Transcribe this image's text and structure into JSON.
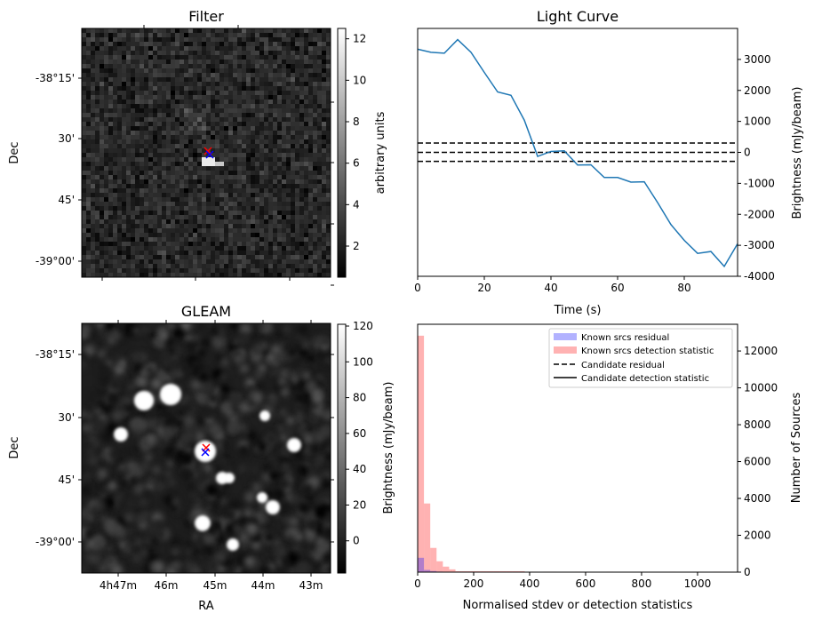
{
  "chart_data": [
    {
      "type": "heatmap",
      "title": "Filter",
      "ylabel": "Dec",
      "yticks": [
        "-38°15'",
        "30'",
        "45'",
        "-39°00'"
      ],
      "colorbar": {
        "label": "arbitrary units",
        "ticks": [
          "2",
          "4",
          "6",
          "8",
          "10",
          "12"
        ],
        "tick_values": [
          2,
          4,
          6,
          8,
          10,
          12
        ],
        "range": [
          0.5,
          12.5
        ]
      },
      "markers": [
        {
          "symbol": "x",
          "color": "#ff0000"
        },
        {
          "symbol": "x",
          "color": "#0000ff"
        }
      ]
    },
    {
      "type": "line",
      "title": "Light Curve",
      "xlabel": "Time (s)",
      "ylabel": "Brightness (mJy/beam)",
      "xlim": [
        0,
        96
      ],
      "ylim": [
        -4000,
        4000
      ],
      "xticks": [
        0,
        20,
        40,
        60,
        80
      ],
      "yticks": [
        -4000,
        -3000,
        -2000,
        -1000,
        0,
        1000,
        2000,
        3000
      ],
      "series": [
        {
          "name": "light curve",
          "color": "#1f77b4",
          "x": [
            0,
            4,
            8,
            12,
            16,
            20,
            24,
            28,
            32,
            36,
            40,
            44,
            48,
            52,
            56,
            60,
            64,
            68,
            72,
            76,
            80,
            84,
            88,
            92,
            96
          ],
          "y": [
            3330,
            3230,
            3200,
            3640,
            3230,
            2580,
            1950,
            1840,
            1040,
            -130,
            30,
            50,
            -410,
            -400,
            -810,
            -810,
            -960,
            -950,
            -1620,
            -2330,
            -2840,
            -3260,
            -3200,
            -3680,
            -2950
          ]
        }
      ],
      "hlines": [
        300,
        0,
        -290
      ]
    },
    {
      "type": "heatmap",
      "title": "GLEAM",
      "xlabel": "RA",
      "ylabel": "Dec",
      "xticks": [
        "4h47m",
        "46m",
        "45m",
        "44m",
        "43m"
      ],
      "yticks": [
        "-38°15'",
        "30'",
        "45'",
        "-39°00'"
      ],
      "colorbar": {
        "label": "Brightness (mJy/beam)",
        "ticks": [
          "0",
          "20",
          "40",
          "60",
          "80",
          "100",
          "120"
        ],
        "tick_values": [
          0,
          20,
          40,
          60,
          80,
          100,
          120
        ],
        "range": [
          -18,
          121
        ]
      },
      "markers": [
        {
          "symbol": "x",
          "color": "#ff0000"
        },
        {
          "symbol": "x",
          "color": "#0000ff"
        }
      ]
    },
    {
      "type": "bar",
      "xlabel": "Normalised stdev or detection statistics",
      "ylabel": "Number of Sources",
      "xlim": [
        0,
        1143
      ],
      "ylim": [
        0,
        13450
      ],
      "xticks": [
        0,
        200,
        400,
        600,
        800,
        1000
      ],
      "yticks": [
        0,
        2000,
        4000,
        6000,
        8000,
        10000,
        12000
      ],
      "bin_width": 22.5,
      "legend": {
        "placement": "top-right",
        "entries": [
          "Known srcs residual",
          "Known srcs detection statistic",
          "Candidate residual",
          "Candidate detection statistic"
        ]
      },
      "series": [
        {
          "name": "Known srcs residual",
          "color": "#0000ff",
          "alpha": 0.3,
          "counts": [
            780,
            120,
            60,
            30,
            20,
            10
          ]
        },
        {
          "name": "Known srcs detection statistic",
          "color": "#ff0000",
          "alpha": 0.3,
          "counts": [
            12830,
            3725,
            1315,
            590,
            300,
            150,
            50,
            50,
            50,
            50,
            50,
            50,
            50,
            50,
            50,
            50,
            50,
            0,
            25,
            0,
            25,
            25,
            0,
            0,
            0,
            25,
            0,
            0,
            0,
            0,
            25,
            0,
            0,
            0,
            0,
            0,
            0,
            0,
            0,
            0,
            25,
            0,
            0,
            0,
            0,
            0,
            0,
            25
          ]
        }
      ]
    }
  ]
}
